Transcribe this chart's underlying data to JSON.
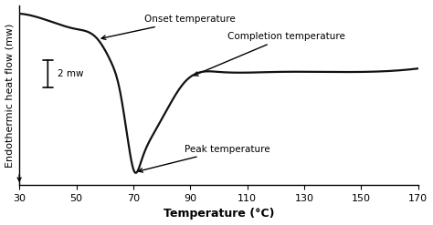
{
  "xlabel": "Temperature (°C)",
  "ylabel": "Endothermic heat flow (mw)",
  "xlim": [
    30,
    170
  ],
  "ylim": [
    -1.0,
    1.1
  ],
  "xticks": [
    30,
    50,
    70,
    90,
    110,
    130,
    150,
    170
  ],
  "bg_color": "#ffffff",
  "line_color": "#111111",
  "scalebar_label": "2 mw",
  "axis_fontsize": 8,
  "annotation_fontsize": 7.5,
  "xlabel_fontsize": 9
}
